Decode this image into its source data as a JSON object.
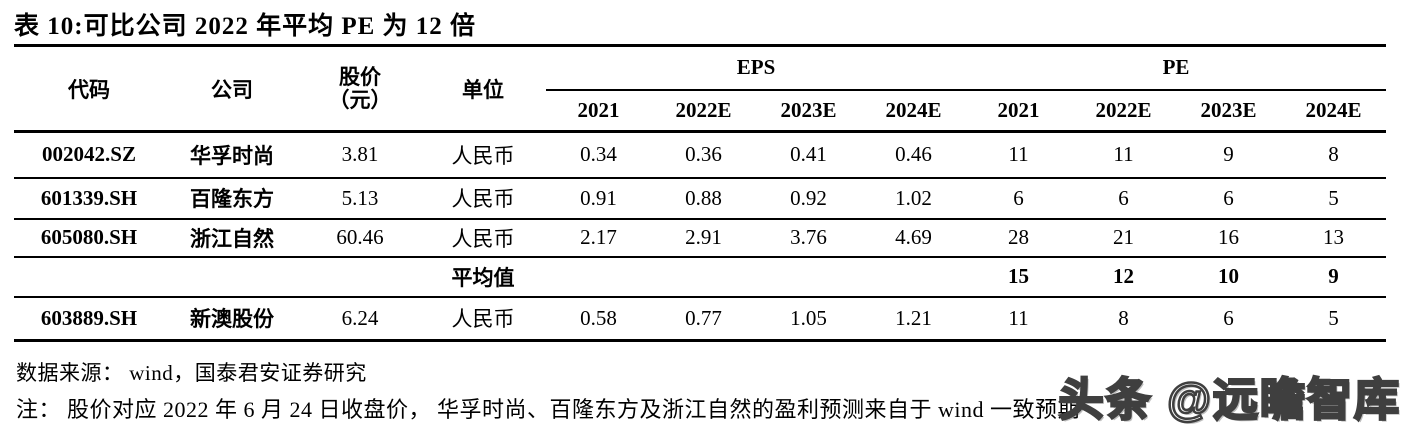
{
  "title": "表 10:可比公司 2022 年平均 PE 为 12 倍",
  "table": {
    "headers": {
      "code": "代码",
      "company": "公司",
      "price_line1": "股价",
      "price_line2": "（元）",
      "unit": "单位",
      "eps_group": "EPS",
      "pe_group": "PE",
      "years": [
        "2021",
        "2022E",
        "2023E",
        "2024E"
      ]
    },
    "rows": [
      {
        "code": "002042.SZ",
        "company": "华孚时尚",
        "price": "3.81",
        "unit": "人民币",
        "eps": [
          "0.34",
          "0.36",
          "0.41",
          "0.46"
        ],
        "pe": [
          "11",
          "11",
          "9",
          "8"
        ]
      },
      {
        "code": "601339.SH",
        "company": "百隆东方",
        "price": "5.13",
        "unit": "人民币",
        "eps": [
          "0.91",
          "0.88",
          "0.92",
          "1.02"
        ],
        "pe": [
          "6",
          "6",
          "6",
          "5"
        ]
      },
      {
        "code": "605080.SH",
        "company": "浙江自然",
        "price": "60.46",
        "unit": "人民币",
        "eps": [
          "2.17",
          "2.91",
          "3.76",
          "4.69"
        ],
        "pe": [
          "28",
          "21",
          "16",
          "13"
        ]
      },
      {
        "code": "",
        "company": "",
        "price": "",
        "unit": "平均值",
        "eps": [
          "",
          "",
          "",
          ""
        ],
        "pe": [
          "15",
          "12",
          "10",
          "9"
        ]
      },
      {
        "code": "603889.SH",
        "company": "新澳股份",
        "price": "6.24",
        "unit": "人民币",
        "eps": [
          "0.58",
          "0.77",
          "1.05",
          "1.21"
        ],
        "pe": [
          "11",
          "8",
          "6",
          "5"
        ]
      }
    ]
  },
  "footnotes": {
    "source": "数据来源： wind，国泰君安证券研究",
    "note": "注： 股价对应 2022 年 6 月 24 日收盘价， 华孚时尚、百隆东方及浙江自然的盈利预测来自于 wind 一致预期"
  },
  "watermark": "头条 @远瞻智库"
}
